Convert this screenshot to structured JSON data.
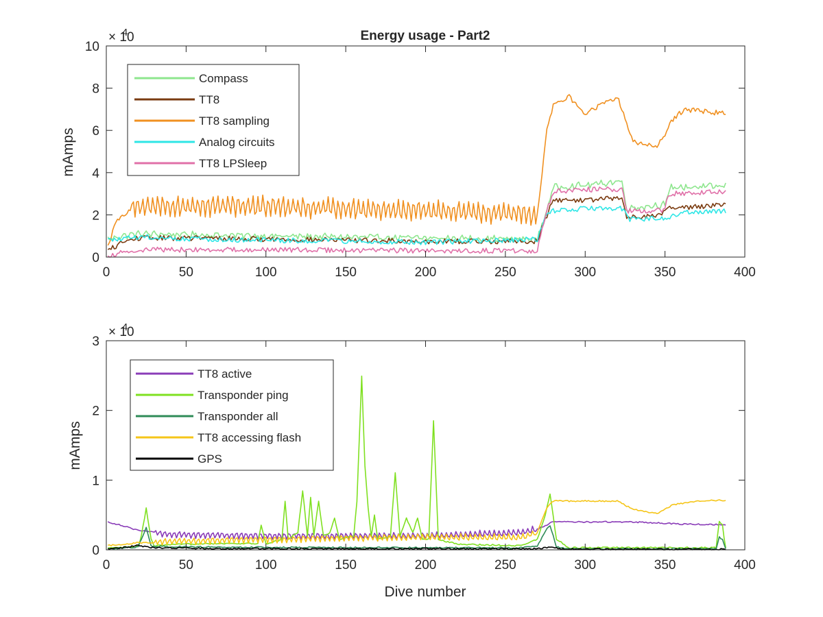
{
  "chart_data": [
    {
      "type": "line",
      "title": "Energy usage - Part2",
      "xlabel": "",
      "ylabel": "mAmps",
      "xlim": [
        0,
        400
      ],
      "ylim": [
        0,
        100000
      ],
      "xticks": [
        0,
        50,
        100,
        150,
        200,
        250,
        300,
        350,
        400
      ],
      "yticks": [
        0,
        20000,
        40000,
        60000,
        80000,
        100000
      ],
      "ytick_labels": [
        "0",
        "2",
        "4",
        "6",
        "8",
        "10"
      ],
      "exponent_prefix": "× 10",
      "exponent_power": "4",
      "grid": false,
      "legend_position": "top-left",
      "series": [
        {
          "name": "Compass",
          "color": "#8ee68e",
          "anchors": [
            [
              1,
              8500
            ],
            [
              10,
              10000
            ],
            [
              20,
              11000
            ],
            [
              60,
              10500
            ],
            [
              100,
              10000
            ],
            [
              150,
              9500
            ],
            [
              200,
              9000
            ],
            [
              270,
              8500
            ],
            [
              275,
              20000
            ],
            [
              280,
              33000
            ],
            [
              300,
              34000
            ],
            [
              323,
              36000
            ],
            [
              326,
              23000
            ],
            [
              350,
              25000
            ],
            [
              354,
              33000
            ],
            [
              388,
              33500
            ]
          ]
        },
        {
          "name": "TT8",
          "color": "#7a3b10",
          "anchors": [
            [
              1,
              3000
            ],
            [
              10,
              7000
            ],
            [
              20,
              9000
            ],
            [
              60,
              9000
            ],
            [
              100,
              8500
            ],
            [
              150,
              8000
            ],
            [
              200,
              7500
            ],
            [
              270,
              7500
            ],
            [
              275,
              18000
            ],
            [
              280,
              27000
            ],
            [
              300,
              27000
            ],
            [
              323,
              28000
            ],
            [
              326,
              19000
            ],
            [
              345,
              19500
            ],
            [
              352,
              23000
            ],
            [
              388,
              25000
            ]
          ]
        },
        {
          "name": "TT8 sampling",
          "color": "#f09020",
          "anchors": [
            [
              1,
              5000
            ],
            [
              5,
              15000
            ],
            [
              10,
              20000
            ],
            [
              20,
              24000
            ],
            [
              60,
              24000
            ],
            [
              100,
              24000
            ],
            [
              150,
              23000
            ],
            [
              200,
              22000
            ],
            [
              240,
              21000
            ],
            [
              270,
              20000
            ],
            [
              276,
              60000
            ],
            [
              280,
              72000
            ],
            [
              290,
              76000
            ],
            [
              300,
              68000
            ],
            [
              320,
              76000
            ],
            [
              325,
              66000
            ],
            [
              330,
              55000
            ],
            [
              345,
              52000
            ],
            [
              355,
              65000
            ],
            [
              362,
              70000
            ],
            [
              388,
              68000
            ]
          ]
        },
        {
          "name": "Analog circuits",
          "color": "#2ee6e6",
          "anchors": [
            [
              1,
              8000
            ],
            [
              10,
              8500
            ],
            [
              20,
              9500
            ],
            [
              60,
              8500
            ],
            [
              100,
              8000
            ],
            [
              150,
              7500
            ],
            [
              200,
              7000
            ],
            [
              270,
              8500
            ],
            [
              276,
              20000
            ],
            [
              280,
              22000
            ],
            [
              300,
              23000
            ],
            [
              323,
              23000
            ],
            [
              328,
              18000
            ],
            [
              350,
              18500
            ],
            [
              360,
              21000
            ],
            [
              388,
              22000
            ]
          ]
        },
        {
          "name": "TT8 LPSleep",
          "color": "#e070a8",
          "anchors": [
            [
              1,
              0
            ],
            [
              10,
              2500
            ],
            [
              20,
              3500
            ],
            [
              100,
              3500
            ],
            [
              200,
              3000
            ],
            [
              270,
              3000
            ],
            [
              275,
              20000
            ],
            [
              280,
              31000
            ],
            [
              300,
              32000
            ],
            [
              323,
              32000
            ],
            [
              326,
              22000
            ],
            [
              350,
              22000
            ],
            [
              352,
              30000
            ],
            [
              388,
              31000
            ]
          ]
        }
      ]
    },
    {
      "type": "line",
      "title": "",
      "xlabel": "Dive number",
      "ylabel": "mAmps",
      "xlim": [
        0,
        400
      ],
      "ylim": [
        0,
        30000
      ],
      "xticks": [
        0,
        50,
        100,
        150,
        200,
        250,
        300,
        350,
        400
      ],
      "yticks": [
        0,
        10000,
        20000,
        30000
      ],
      "ytick_labels": [
        "0",
        "1",
        "2",
        "3"
      ],
      "exponent_prefix": "× 10",
      "exponent_power": "4",
      "grid": false,
      "legend_position": "top-left",
      "series": [
        {
          "name": "TT8 active",
          "color": "#8a3cb8",
          "anchors": [
            [
              1,
              4000
            ],
            [
              10,
              3500
            ],
            [
              20,
              2800
            ],
            [
              40,
              2200
            ],
            [
              100,
              2000
            ],
            [
              200,
              2000
            ],
            [
              260,
              2500
            ],
            [
              270,
              3000
            ],
            [
              280,
              4000
            ],
            [
              300,
              4000
            ],
            [
              330,
              4000
            ],
            [
              360,
              3700
            ],
            [
              388,
              3600
            ]
          ]
        },
        {
          "name": "Transponder ping",
          "color": "#7fe020",
          "anchors": [
            [
              1,
              200
            ],
            [
              20,
              500
            ],
            [
              22,
              2000
            ],
            [
              25,
              6000
            ],
            [
              28,
              1500
            ],
            [
              30,
              600
            ],
            [
              60,
              900
            ],
            [
              95,
              900
            ],
            [
              97,
              3500
            ],
            [
              100,
              800
            ],
            [
              110,
              1500
            ],
            [
              112,
              7000
            ],
            [
              114,
              1500
            ],
            [
              120,
              2500
            ],
            [
              123,
              8500
            ],
            [
              126,
              2000
            ],
            [
              128,
              7500
            ],
            [
              130,
              2000
            ],
            [
              133,
              7000
            ],
            [
              136,
              2000
            ],
            [
              140,
              2500
            ],
            [
              143,
              4500
            ],
            [
              146,
              1500
            ],
            [
              155,
              2000
            ],
            [
              157,
              7000
            ],
            [
              160,
              25000
            ],
            [
              162,
              12000
            ],
            [
              164,
              6000
            ],
            [
              166,
              2000
            ],
            [
              168,
              5000
            ],
            [
              170,
              1500
            ],
            [
              178,
              2000
            ],
            [
              181,
              11000
            ],
            [
              184,
              2000
            ],
            [
              188,
              4500
            ],
            [
              192,
              2500
            ],
            [
              195,
              4500
            ],
            [
              198,
              1500
            ],
            [
              202,
              1500
            ],
            [
              205,
              18500
            ],
            [
              208,
              1500
            ],
            [
              220,
              800
            ],
            [
              260,
              600
            ],
            [
              270,
              1500
            ],
            [
              275,
              5000
            ],
            [
              278,
              8000
            ],
            [
              282,
              1500
            ],
            [
              290,
              300
            ],
            [
              382,
              300
            ],
            [
              384,
              4000
            ],
            [
              386,
              3500
            ],
            [
              388,
              200
            ]
          ]
        },
        {
          "name": "Transponder all",
          "color": "#2e8b57",
          "anchors": [
            [
              1,
              150
            ],
            [
              20,
              400
            ],
            [
              25,
              3200
            ],
            [
              28,
              500
            ],
            [
              60,
              400
            ],
            [
              100,
              350
            ],
            [
              200,
              300
            ],
            [
              260,
              300
            ],
            [
              270,
              600
            ],
            [
              276,
              3000
            ],
            [
              278,
              3500
            ],
            [
              282,
              400
            ],
            [
              290,
              150
            ],
            [
              382,
              150
            ],
            [
              384,
              1800
            ],
            [
              386,
              1500
            ],
            [
              388,
              100
            ]
          ]
        },
        {
          "name": "TT8 accessing flash",
          "color": "#f5c518",
          "anchors": [
            [
              1,
              600
            ],
            [
              10,
              800
            ],
            [
              20,
              1000
            ],
            [
              40,
              1200
            ],
            [
              100,
              1500
            ],
            [
              150,
              1700
            ],
            [
              200,
              1800
            ],
            [
              260,
              1800
            ],
            [
              270,
              2500
            ],
            [
              276,
              6000
            ],
            [
              280,
              7000
            ],
            [
              300,
              7000
            ],
            [
              320,
              7000
            ],
            [
              330,
              5800
            ],
            [
              345,
              5200
            ],
            [
              355,
              6500
            ],
            [
              370,
              7000
            ],
            [
              388,
              7100
            ]
          ]
        },
        {
          "name": "GPS",
          "color": "#000000",
          "anchors": [
            [
              1,
              100
            ],
            [
              10,
              300
            ],
            [
              20,
              600
            ],
            [
              30,
              300
            ],
            [
              60,
              200
            ],
            [
              150,
              150
            ],
            [
              270,
              150
            ],
            [
              276,
              300
            ],
            [
              280,
              400
            ],
            [
              285,
              100
            ],
            [
              388,
              80
            ]
          ]
        }
      ]
    }
  ]
}
